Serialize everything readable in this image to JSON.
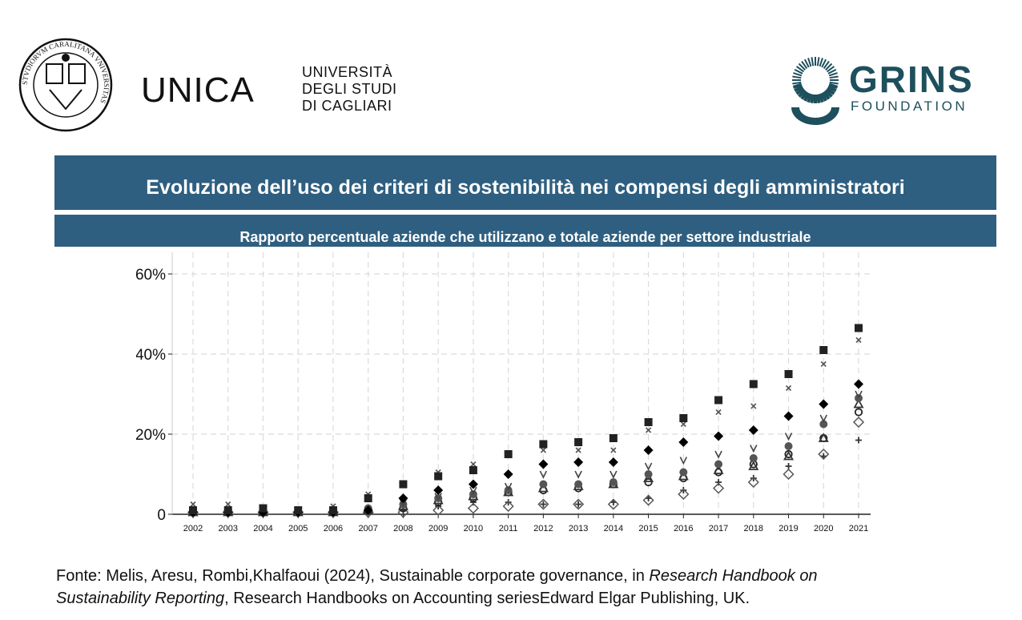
{
  "logos": {
    "seal_text": "STVDIORVM CARALITANA VNIVERSITAS",
    "unica_brand": "UNICA",
    "unica_lines": [
      "UNIVERSITÀ",
      "DEGLI STUDI",
      "DI CAGLIARI"
    ],
    "grins_brand": "GRINS",
    "grins_sub": "FOUNDATION",
    "grins_color": "#1e4f5c"
  },
  "header": {
    "title": "Evoluzione dell’uso dei criteri di sostenibilità nei compensi degli amministratori",
    "subtitle": "Rapporto percentuale aziende che utilizzano e totale aziende per settore industriale",
    "bar_color": "#2e5f80"
  },
  "chart_data": {
    "type": "scatter",
    "title": "",
    "xlabel": "",
    "ylabel": "",
    "x": [
      2002,
      2003,
      2004,
      2005,
      2006,
      2007,
      2008,
      2009,
      2010,
      2011,
      2012,
      2013,
      2014,
      2015,
      2016,
      2017,
      2018,
      2019,
      2020,
      2021
    ],
    "ylim": [
      0,
      65
    ],
    "yticks": [
      0,
      20,
      40,
      60
    ],
    "ytick_labels": [
      "0",
      "20%",
      "40%",
      "60%"
    ],
    "grid": true,
    "series": [
      {
        "marker": "square-filled",
        "color": "#222222",
        "values": [
          1,
          1,
          1.5,
          1,
          1,
          4,
          7.5,
          9.5,
          11,
          15,
          17.5,
          18,
          19,
          23,
          24,
          28.5,
          32.5,
          35,
          41,
          46.5
        ]
      },
      {
        "marker": "x",
        "color": "#555555",
        "values": [
          2.5,
          2.5,
          1.5,
          1,
          2,
          5,
          7.5,
          10.5,
          12.5,
          15,
          16,
          16,
          16,
          21,
          22.5,
          25.5,
          27,
          31.5,
          37.5,
          43.5
        ]
      },
      {
        "marker": "diamond-filled",
        "color": "#000000",
        "values": [
          0.5,
          0.5,
          0.5,
          0.5,
          0.5,
          1,
          4,
          6,
          7.5,
          10,
          12.5,
          13,
          13,
          16,
          18,
          19.5,
          21,
          24.5,
          27.5,
          32.5
        ]
      },
      {
        "marker": "v",
        "color": "#444444",
        "values": [
          0.5,
          0.5,
          0.5,
          0.5,
          0.5,
          1,
          3,
          4.5,
          6,
          7,
          10,
          10,
          10,
          12,
          13.5,
          15,
          16.5,
          19.5,
          24,
          30
        ]
      },
      {
        "marker": "circle-filled",
        "color": "#555555",
        "values": [
          1,
          1,
          1,
          0.5,
          1,
          1.5,
          2.5,
          4,
          5,
          6,
          7.5,
          7.5,
          8,
          10,
          10.5,
          12.5,
          14,
          17,
          22.5,
          29
        ]
      },
      {
        "marker": "triangle-open",
        "color": "#333333",
        "values": [
          0.5,
          0.5,
          0.5,
          0.5,
          0.5,
          1,
          2,
          3.5,
          4.5,
          5.5,
          6.5,
          7,
          7.5,
          9,
          9.5,
          11,
          12,
          14.5,
          19,
          27.5
        ]
      },
      {
        "marker": "circle-open",
        "color": "#222222",
        "values": [
          0.5,
          0.5,
          0.5,
          0.5,
          0.5,
          1,
          1.5,
          3,
          4,
          5.5,
          6,
          6.5,
          7.5,
          8,
          9,
          10.5,
          12.5,
          15,
          19,
          25.5
        ]
      },
      {
        "marker": "diamond-open",
        "color": "#555555",
        "values": [
          0.5,
          0.5,
          0.5,
          0.5,
          0.5,
          0.5,
          0.5,
          1,
          1.5,
          2,
          2.5,
          2.5,
          2.5,
          3.5,
          5,
          6.5,
          8,
          10,
          15,
          23
        ]
      },
      {
        "marker": "plus",
        "color": "#333333",
        "values": [
          0.5,
          0.5,
          0.5,
          0.5,
          0.5,
          1,
          1,
          2,
          3,
          3,
          2.5,
          2.5,
          3,
          4,
          6,
          8,
          9,
          12,
          14.5,
          18.5
        ]
      }
    ]
  },
  "source": {
    "line1_a": "Fonte: Melis, Aresu, Rombi,Khalfaoui (2024), Sustainable corporate governance, in ",
    "line1_italic": "Research Handbook on",
    "line2_italic": "Sustainability Reporting",
    "line2_b": ", Research Handbooks on Accounting seriesEdward Elgar Publishing, UK."
  }
}
